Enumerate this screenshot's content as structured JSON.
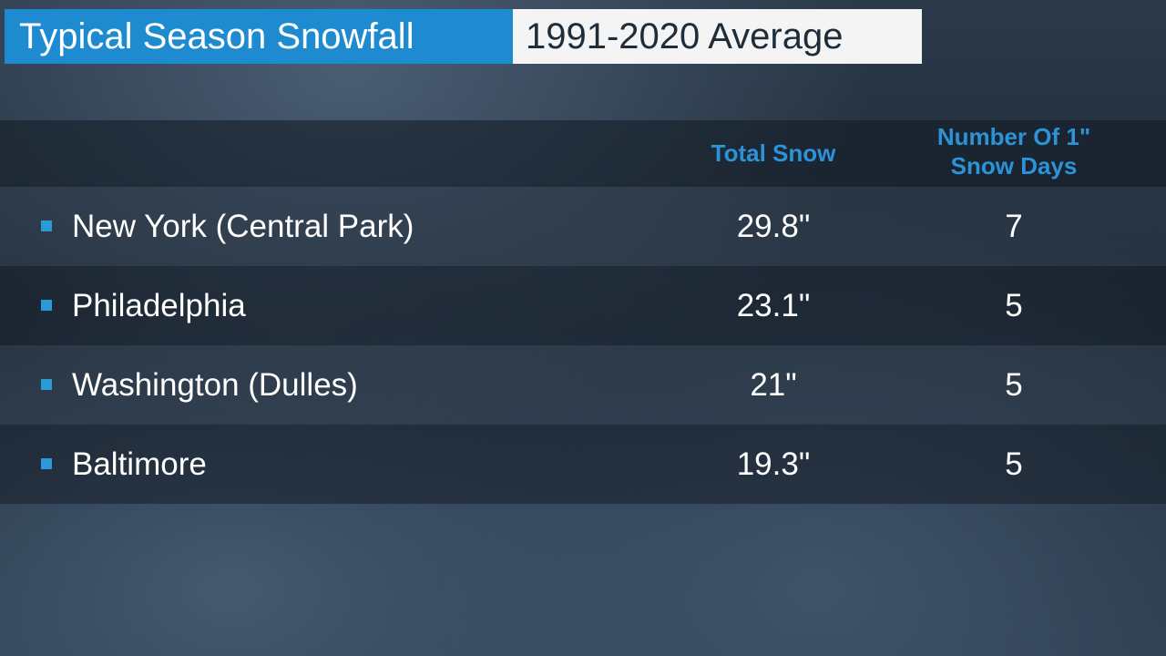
{
  "header": {
    "title": "Typical Season Snowfall",
    "subtitle": "1991-2020 Average"
  },
  "table": {
    "columns": [
      "Total Snow",
      "Number Of 1\" Snow Days"
    ],
    "rows": [
      [
        "New York (Central Park)",
        "29.8\"",
        7
      ],
      [
        "Philadelphia",
        "23.1\"",
        5
      ],
      [
        "Washington (Dulles)",
        "21\"",
        5
      ],
      [
        "Baltimore",
        "19.3\"",
        5
      ]
    ]
  }
}
